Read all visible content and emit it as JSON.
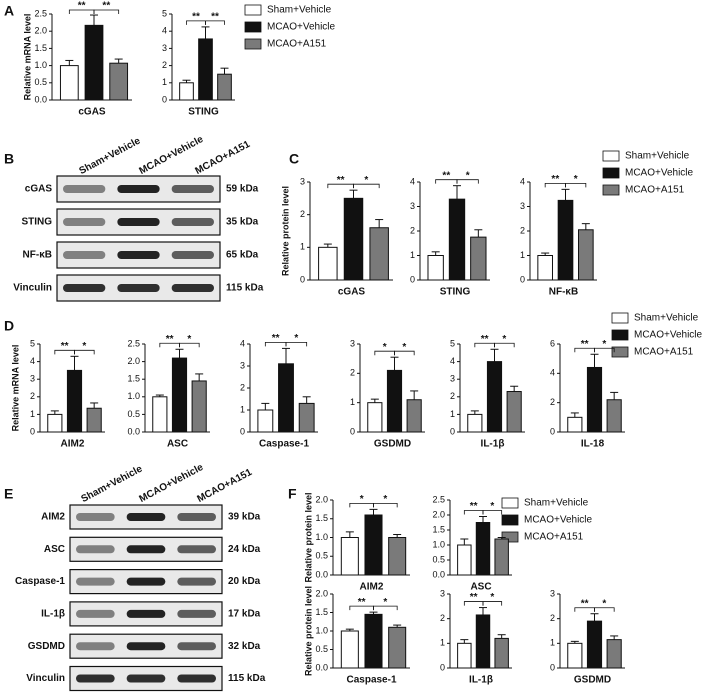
{
  "panel_labels": [
    "A",
    "B",
    "C",
    "D",
    "E",
    "F"
  ],
  "groups": [
    {
      "name": "Sham+Vehicle",
      "color": "#ffffff"
    },
    {
      "name": "MCAO+Vehicle",
      "color": "#111111"
    },
    {
      "name": "MCAO+A151",
      "color": "#7a7a7a"
    }
  ],
  "blots": [
    {
      "rows": [
        {
          "protein": "cGAS",
          "size": "59 kDa"
        },
        {
          "protein": "STING",
          "size": "35 kDa"
        },
        {
          "protein": "NF-κB",
          "size": "65 kDa"
        },
        {
          "protein": "Vinculin",
          "size": "115 kDa"
        }
      ]
    },
    {
      "rows": [
        {
          "protein": "AIM2",
          "size": "39 kDa"
        },
        {
          "protein": "ASC",
          "size": "24 kDa"
        },
        {
          "protein": "Caspase-1",
          "size": "20 kDa"
        },
        {
          "protein": "IL-1β",
          "size": "17 kDa"
        },
        {
          "protein": "GSDMD",
          "size": "32 kDa"
        },
        {
          "protein": "Vinculin",
          "size": "115 kDa"
        }
      ]
    }
  ],
  "chart_data": [
    {
      "type": "bar",
      "xlabel": "cGAS",
      "ylabel": "Relative mRNA level",
      "values": [
        1.0,
        2.17,
        1.07
      ],
      "errors": [
        0.15,
        0.3,
        0.12
      ],
      "ylim": [
        0,
        2.5
      ],
      "yticks": [
        {
          "value": 0,
          "label": "0.0"
        },
        0.5,
        {
          "value": 1,
          "label": "1.0"
        },
        1.5,
        {
          "value": 2,
          "label": "2.0"
        },
        2.5
      ],
      "significance": [
        "**",
        "**"
      ]
    },
    {
      "type": "bar",
      "xlabel": "STING",
      "values": [
        1.0,
        3.55,
        1.5
      ],
      "errors": [
        0.15,
        0.7,
        0.35
      ],
      "ylim": [
        0,
        5
      ],
      "yticks": [
        0,
        1,
        2,
        3,
        4,
        5
      ],
      "significance": [
        "**",
        "**"
      ]
    },
    {
      "type": "bar",
      "xlabel": "cGAS",
      "ylabel": "Relative protein level",
      "values": [
        1.0,
        2.5,
        1.6
      ],
      "errors": [
        0.1,
        0.25,
        0.25
      ],
      "ylim": [
        0,
        3
      ],
      "yticks": [
        0,
        1,
        2,
        3
      ],
      "significance": [
        "**",
        "*"
      ]
    },
    {
      "type": "bar",
      "xlabel": "STING",
      "values": [
        1.0,
        3.3,
        1.75
      ],
      "errors": [
        0.15,
        0.55,
        0.3
      ],
      "ylim": [
        0,
        4
      ],
      "yticks": [
        0,
        1,
        2,
        3,
        4
      ],
      "significance": [
        "**",
        "*"
      ]
    },
    {
      "type": "bar",
      "xlabel": "NF-κB",
      "values": [
        1.0,
        3.25,
        2.05
      ],
      "errors": [
        0.1,
        0.45,
        0.25
      ],
      "ylim": [
        0,
        4
      ],
      "yticks": [
        0,
        1,
        2,
        3,
        4
      ],
      "significance": [
        "**",
        "*"
      ]
    },
    {
      "type": "bar",
      "xlabel": "AIM2",
      "ylabel": "Relative mRNA level",
      "values": [
        1.0,
        3.5,
        1.35
      ],
      "errors": [
        0.2,
        0.8,
        0.3
      ],
      "ylim": [
        0,
        5
      ],
      "yticks": [
        0,
        1,
        2,
        3,
        4,
        5
      ],
      "significance": [
        "**",
        "*"
      ]
    },
    {
      "type": "bar",
      "xlabel": "ASC",
      "values": [
        1.0,
        2.1,
        1.45
      ],
      "errors": [
        0.05,
        0.25,
        0.2
      ],
      "ylim": [
        0,
        2.5
      ],
      "yticks": [
        {
          "value": 0,
          "label": "0.0"
        },
        0.5,
        {
          "value": 1,
          "label": "1.0"
        },
        1.5,
        {
          "value": 2,
          "label": "2.0"
        },
        2.5
      ],
      "significance": [
        "**",
        "*"
      ]
    },
    {
      "type": "bar",
      "xlabel": "Caspase-1",
      "values": [
        1.0,
        3.1,
        1.3
      ],
      "errors": [
        0.3,
        0.7,
        0.3
      ],
      "ylim": [
        0,
        4
      ],
      "yticks": [
        0,
        1,
        2,
        3,
        4
      ],
      "significance": [
        "**",
        "*"
      ]
    },
    {
      "type": "bar",
      "xlabel": "GSDMD",
      "values": [
        1.0,
        2.1,
        1.1
      ],
      "errors": [
        0.12,
        0.45,
        0.3
      ],
      "ylim": [
        0,
        3
      ],
      "yticks": [
        0,
        1,
        2,
        3
      ],
      "significance": [
        "*",
        "*"
      ]
    },
    {
      "type": "bar",
      "xlabel": "IL-1β",
      "values": [
        1.0,
        4.0,
        2.3
      ],
      "errors": [
        0.2,
        0.7,
        0.3
      ],
      "ylim": [
        0,
        5
      ],
      "yticks": [
        0,
        1,
        2,
        3,
        4,
        5
      ],
      "significance": [
        "**",
        "*"
      ]
    },
    {
      "type": "bar",
      "xlabel": "IL-18",
      "values": [
        1.0,
        4.4,
        2.2
      ],
      "errors": [
        0.3,
        0.9,
        0.5
      ],
      "ylim": [
        0,
        6
      ],
      "yticks": [
        0,
        2,
        4,
        6
      ],
      "significance": [
        "**",
        "*"
      ]
    },
    {
      "type": "bar",
      "xlabel": "AIM2",
      "ylabel": "Relative protein level",
      "values": [
        1.0,
        1.6,
        1.0
      ],
      "errors": [
        0.15,
        0.15,
        0.08
      ],
      "ylim": [
        0,
        2
      ],
      "yticks": [
        {
          "value": 0,
          "label": "0.0"
        },
        0.5,
        {
          "value": 1,
          "label": "1.0"
        },
        1.5,
        {
          "value": 2,
          "label": "2.0"
        }
      ],
      "significance": [
        "*",
        "*"
      ]
    },
    {
      "type": "bar",
      "xlabel": "ASC",
      "values": [
        1.0,
        1.75,
        1.2
      ],
      "errors": [
        0.2,
        0.2,
        0.05
      ],
      "ylim": [
        0,
        2.5
      ],
      "yticks": [
        {
          "value": 0,
          "label": "0.0"
        },
        0.5,
        {
          "value": 1,
          "label": "1.0"
        },
        1.5,
        {
          "value": 2,
          "label": "2.0"
        },
        2.5
      ],
      "significance": [
        "**",
        "*"
      ]
    },
    {
      "type": "bar",
      "xlabel": "Caspase-1",
      "ylabel": "Relative protein level",
      "values": [
        1.0,
        1.45,
        1.1
      ],
      "errors": [
        0.05,
        0.06,
        0.06
      ],
      "ylim": [
        0,
        2
      ],
      "yticks": [
        {
          "value": 0,
          "label": "0.0"
        },
        0.5,
        {
          "value": 1,
          "label": "1.0"
        },
        1.5,
        {
          "value": 2,
          "label": "2.0"
        }
      ],
      "significance": [
        "**",
        "*"
      ]
    },
    {
      "type": "bar",
      "xlabel": "IL-1β",
      "values": [
        1.0,
        2.15,
        1.2
      ],
      "errors": [
        0.15,
        0.3,
        0.15
      ],
      "ylim": [
        0,
        3
      ],
      "yticks": [
        0,
        1,
        2,
        3
      ],
      "significance": [
        "**",
        "*"
      ]
    },
    {
      "type": "bar",
      "xlabel": "GSDMD",
      "values": [
        1.0,
        1.9,
        1.15
      ],
      "errors": [
        0.08,
        0.3,
        0.15
      ],
      "ylim": [
        0,
        3
      ],
      "yticks": [
        0,
        1,
        2,
        3
      ],
      "significance": [
        "**",
        "*"
      ]
    }
  ]
}
